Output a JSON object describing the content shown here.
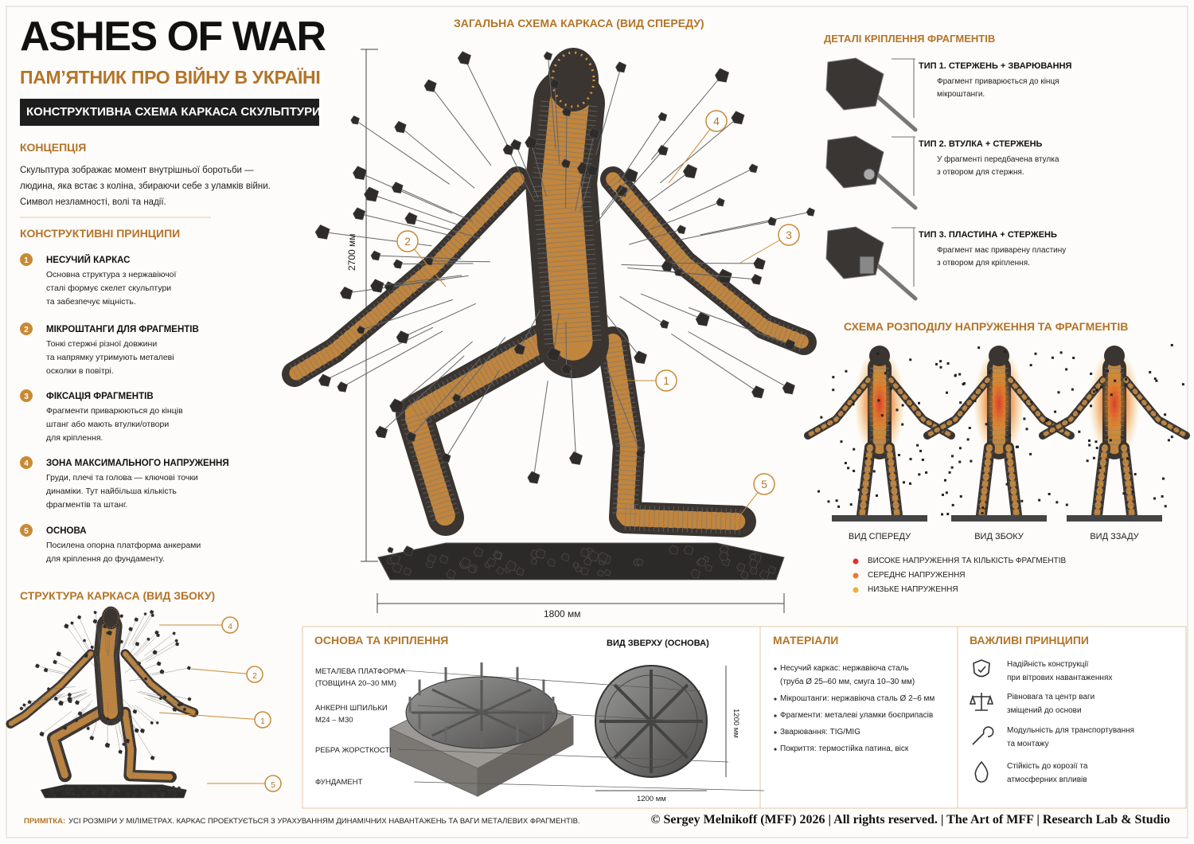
{
  "header": {
    "title": "ASHES OF WAR",
    "subtitle": "ПАМ’ЯТНИК ПРО ВІЙНУ В УКРАЇНІ",
    "banner": "КОНСТРУКТИВНА СХЕМА КАРКАСА СКУЛЬПТУРИ"
  },
  "concept": {
    "heading": "КОНЦЕПЦІЯ",
    "lines": [
      "Скульптура зображає момент внутрішньої боротьби —",
      "людина, яка встає з коліна, збираючи себе з уламків війни.",
      "Символ незламності, волі та надії."
    ]
  },
  "principles": {
    "heading": "КОНСТРУКТИВНІ ПРИНЦИПИ",
    "items": [
      {
        "number": "1",
        "title": "НЕСУЧИЙ КАРКАС",
        "lines": [
          "Основна структура з нержавіючої",
          "сталі формує скелет скульптури",
          "та забезпечує міцність."
        ]
      },
      {
        "number": "2",
        "title": "МІКРОШТАНГИ ДЛЯ ФРАГМЕНТІВ",
        "lines": [
          "Тонкі стержні різної довжини",
          "та напрямку утримують металеві",
          "осколки в повітрі."
        ]
      },
      {
        "number": "3",
        "title": "ФІКСАЦІЯ ФРАГМЕНТІВ",
        "lines": [
          "Фрагменти приварюються до кінців",
          "штанг або мають втулки/отвори",
          "для кріплення."
        ]
      },
      {
        "number": "4",
        "title": "ЗОНА МАКСИМАЛЬНОГО НАПРУЖЕННЯ",
        "lines": [
          "Груди, плечі та голова — ключові точки",
          "динаміки. Тут найбільша кількість",
          "фрагментів та штанг."
        ]
      },
      {
        "number": "5",
        "title": "ОСНОВА",
        "lines": [
          "Посилена опорна платформа анкерами",
          "для кріплення до фундаменту."
        ]
      }
    ]
  },
  "side_view": {
    "heading": "СТРУКТУРА КАРКАСА (ВИД ЗБОКУ)",
    "callouts": [
      "4",
      "2",
      "1",
      "5"
    ]
  },
  "front_view": {
    "heading": "ЗАГАЛЬНА СХЕМА КАРКАСА (ВИД СПЕРЕДУ)",
    "height_label": "2700 мм",
    "width_label": "1800 мм",
    "callouts": [
      "4",
      "2",
      "3",
      "1",
      "5"
    ]
  },
  "attachment": {
    "heading": "ДЕТАЛІ КРІПЛЕННЯ ФРАГМЕНТІВ",
    "types": [
      {
        "title": "ТИП 1. СТЕРЖЕНЬ + ЗВАРЮВАННЯ",
        "lines": [
          "Фрагмент приварюється до кінця",
          "мікроштанги."
        ]
      },
      {
        "title": "ТИП 2. ВТУЛКА + СТЕРЖЕНЬ",
        "lines": [
          "У фрагменті передбачена втулка",
          "з отвором для стержня."
        ]
      },
      {
        "title": "ТИП 3. ПЛАСТИНА + СТЕРЖЕНЬ",
        "lines": [
          "Фрагмент має приварену пластину",
          "з отвором для кріплення."
        ]
      }
    ]
  },
  "stress": {
    "heading": "СХЕМА РОЗПОДІЛУ НАПРУЖЕННЯ ТА ФРАГМЕНТІВ",
    "views": [
      "ВИД СПЕРЕДУ",
      "ВИД ЗБОКУ",
      "ВИД ЗЗАДУ"
    ],
    "legend": [
      {
        "label": "ВИСОКЕ НАПРУЖЕННЯ ТА КІЛЬКІСТЬ ФРАГМЕНТІВ",
        "color": "#e0322a"
      },
      {
        "label": "СЕРЕДНЄ НАПРУЖЕННЯ",
        "color": "#ee7a25"
      },
      {
        "label": "НИЗЬКЕ НАПРУЖЕННЯ",
        "color": "#e8b23a"
      }
    ]
  },
  "base": {
    "heading": "ОСНОВА ТА КРІПЛЕННЯ",
    "labels": [
      [
        "МЕТАЛЕВА ПЛАТФОРМА",
        "(ТОВЩИНА 20–30 ММ)"
      ],
      [
        "АНКЕРНІ ШПИЛЬКИ",
        "M24 – M30"
      ],
      [
        "РЕБРА ЖОРСТКОСТІ"
      ],
      [
        "ФУНДАМЕНТ"
      ]
    ],
    "top_view": {
      "title": "ВИД ЗВЕРХУ (ОСНОВА)",
      "width_label": "1200 мм",
      "height_label": "1200 мм"
    }
  },
  "materials": {
    "heading": "МАТЕРІАЛИ",
    "items": [
      [
        "Несучий каркас: нержавіюча сталь",
        "(труба Ø 25–60 мм, смуга 10–30 мм)"
      ],
      [
        "Мікроштанги: нержавіюча сталь Ø 2–6 мм"
      ],
      [
        "Фрагменти: металеві уламки боєприпасів"
      ],
      [
        "Зварювання: TIG/MIG"
      ],
      [
        "Покриття: термостійка патина, віск"
      ]
    ]
  },
  "important": {
    "heading": "ВАЖЛИВІ ПРИНЦИПИ",
    "items": [
      [
        "Надійність конструкції",
        "при вітрових навантаженнях"
      ],
      [
        "Рівновага та центр ваги",
        "зміщений до основи"
      ],
      [
        "Модульність для транспортування",
        "та монтажу"
      ],
      [
        "Стійкість до корозії та",
        "атмосферних впливів"
      ]
    ]
  },
  "footer": {
    "note_label": "ПРИМІТКА:",
    "note": "УСІ РОЗМІРИ У МІЛІМЕТРАХ. КАРКАС ПРОЕКТУЄТЬСЯ З УРАХУВАННЯМ ДИНАМІЧНИХ НАВАНТАЖЕНЬ ТА ВАГИ МЕТАЛЕВИХ ФРАГМЕНТІВ.",
    "copyright": "© Sergey Melnikoff (MFF) 2026 | All rights reserved. | The Art of MFF | Research Lab & Studio"
  }
}
